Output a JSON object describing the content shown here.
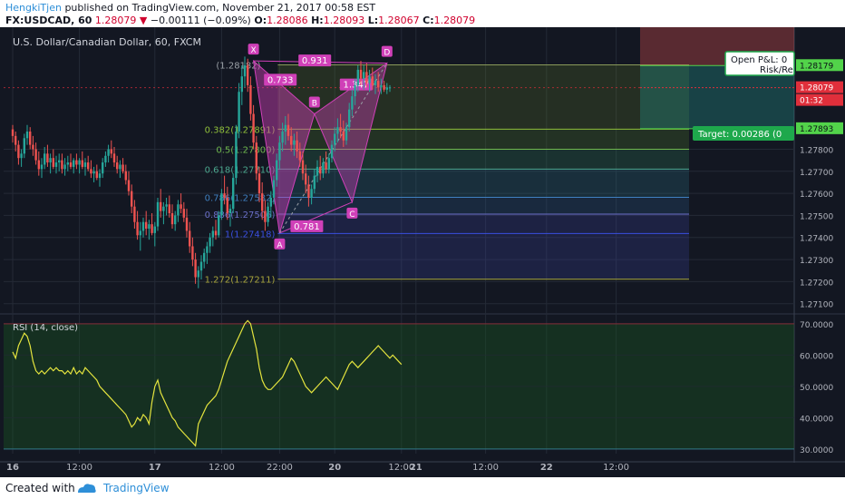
{
  "header": {
    "author": "HengkiTjen",
    "published_text": "published on TradingView.com, November 21, 2017 00:58 EST",
    "symbol": "FX:USDCAD, 60",
    "last": "1.28079",
    "change": "−0.00111 (−0.09%)",
    "o_label": "O:",
    "o_value": "1.28086",
    "h_label": "H:",
    "h_value": "1.28093",
    "l_label": "L:",
    "l_value": "1.28067",
    "c_label": "C:",
    "c_value": "1.28079"
  },
  "footer": {
    "created_with": "Created with",
    "brand": "TradingView"
  },
  "colors": {
    "background": "#131722",
    "up": "#26a69a",
    "down": "#ef5350",
    "pattern": "#d040b8",
    "rsi": "#e4e43e",
    "green_label": "#1ea84c",
    "price_tag": "#e02f3b",
    "grid": "#242a36"
  },
  "chart_data": [
    {
      "type": "candlestick",
      "title": "U.S. Dollar/Canadian Dollar, 60, FXCM",
      "y_ticks": [
        "1.27100",
        "1.27200",
        "1.27300",
        "1.27400",
        "1.27500",
        "1.27600",
        "1.27700",
        "1.27800"
      ],
      "ylim": [
        1.2707,
        1.2832
      ],
      "x_ticks": [
        "16",
        "12:00",
        "17",
        "12:00",
        "22:00",
        "20",
        "12:00",
        "21",
        "12:00",
        "22",
        "12:00"
      ],
      "x_tick_index": [
        0,
        23,
        49,
        72,
        92,
        111,
        134,
        139,
        163,
        184,
        208
      ],
      "ohlc": [
        [
          1.2789,
          1.2791,
          1.2783,
          1.2786
        ],
        [
          1.2786,
          1.2788,
          1.2779,
          1.2782
        ],
        [
          1.2782,
          1.2784,
          1.2773,
          1.2776
        ],
        [
          1.2776,
          1.278,
          1.2772,
          1.2778
        ],
        [
          1.2778,
          1.2787,
          1.2776,
          1.2785
        ],
        [
          1.2785,
          1.2791,
          1.2782,
          1.2788
        ],
        [
          1.2788,
          1.279,
          1.278,
          1.2782
        ],
        [
          1.2782,
          1.2786,
          1.2777,
          1.278
        ],
        [
          1.278,
          1.2783,
          1.2773,
          1.2775
        ],
        [
          1.2775,
          1.2779,
          1.2768,
          1.2771
        ],
        [
          1.2771,
          1.2776,
          1.2767,
          1.2773
        ],
        [
          1.2773,
          1.2781,
          1.2771,
          1.2778
        ],
        [
          1.2778,
          1.2782,
          1.2772,
          1.2774
        ],
        [
          1.2774,
          1.2778,
          1.2769,
          1.2776
        ],
        [
          1.2776,
          1.278,
          1.2771,
          1.2772
        ],
        [
          1.2772,
          1.2777,
          1.2769,
          1.2774
        ],
        [
          1.2774,
          1.2778,
          1.277,
          1.2775
        ],
        [
          1.2775,
          1.2778,
          1.2769,
          1.2771
        ],
        [
          1.2771,
          1.2776,
          1.2768,
          1.2773
        ],
        [
          1.2773,
          1.2777,
          1.277,
          1.2774
        ],
        [
          1.2774,
          1.2778,
          1.2771,
          1.2772
        ],
        [
          1.2772,
          1.2776,
          1.2769,
          1.2775
        ],
        [
          1.2775,
          1.2778,
          1.2771,
          1.2773
        ],
        [
          1.2773,
          1.2776,
          1.2769,
          1.2775
        ],
        [
          1.2775,
          1.2779,
          1.2771,
          1.2772
        ],
        [
          1.2772,
          1.2776,
          1.2768,
          1.2774
        ],
        [
          1.2774,
          1.2777,
          1.277,
          1.2771
        ],
        [
          1.2771,
          1.2775,
          1.2767,
          1.2769
        ],
        [
          1.2769,
          1.2772,
          1.2765,
          1.277
        ],
        [
          1.277,
          1.2773,
          1.2766,
          1.2767
        ],
        [
          1.2767,
          1.2771,
          1.2763,
          1.2769
        ],
        [
          1.2769,
          1.2776,
          1.2767,
          1.2774
        ],
        [
          1.2774,
          1.2779,
          1.2772,
          1.2777
        ],
        [
          1.2777,
          1.2782,
          1.2774,
          1.278
        ],
        [
          1.278,
          1.2784,
          1.2776,
          1.2778
        ],
        [
          1.2778,
          1.2781,
          1.2772,
          1.2774
        ],
        [
          1.2774,
          1.2777,
          1.2769,
          1.2771
        ],
        [
          1.2771,
          1.2775,
          1.2767,
          1.2773
        ],
        [
          1.2773,
          1.2776,
          1.2769,
          1.277
        ],
        [
          1.277,
          1.2773,
          1.2764,
          1.2766
        ],
        [
          1.2766,
          1.277,
          1.2759,
          1.2761
        ],
        [
          1.2761,
          1.2764,
          1.2751,
          1.2754
        ],
        [
          1.2754,
          1.2757,
          1.2744,
          1.2747
        ],
        [
          1.2747,
          1.2752,
          1.2739,
          1.2741
        ],
        [
          1.2741,
          1.2747,
          1.2734,
          1.2743
        ],
        [
          1.2743,
          1.2749,
          1.274,
          1.2747
        ],
        [
          1.2747,
          1.2752,
          1.2741,
          1.2744
        ],
        [
          1.2744,
          1.2748,
          1.2739,
          1.2746
        ],
        [
          1.2746,
          1.2751,
          1.2741,
          1.2742
        ],
        [
          1.2742,
          1.2747,
          1.2736,
          1.2745
        ],
        [
          1.2745,
          1.2758,
          1.2743,
          1.2756
        ],
        [
          1.2756,
          1.2762,
          1.2749,
          1.2752
        ],
        [
          1.2752,
          1.2756,
          1.2746,
          1.2754
        ],
        [
          1.2754,
          1.2758,
          1.275,
          1.2755
        ],
        [
          1.2755,
          1.2759,
          1.2749,
          1.2751
        ],
        [
          1.2751,
          1.2755,
          1.2744,
          1.2746
        ],
        [
          1.2746,
          1.2752,
          1.2743,
          1.275
        ],
        [
          1.275,
          1.2757,
          1.2747,
          1.2755
        ],
        [
          1.2755,
          1.276,
          1.2751,
          1.2753
        ],
        [
          1.2753,
          1.2756,
          1.2747,
          1.2749
        ],
        [
          1.2749,
          1.2753,
          1.274,
          1.2743
        ],
        [
          1.2743,
          1.2747,
          1.2733,
          1.2736
        ],
        [
          1.2736,
          1.274,
          1.2727,
          1.273
        ],
        [
          1.273,
          1.2733,
          1.2719,
          1.2722
        ],
        [
          1.2722,
          1.2727,
          1.2717,
          1.2725
        ],
        [
          1.2725,
          1.2732,
          1.2721,
          1.2729
        ],
        [
          1.2729,
          1.2735,
          1.2726,
          1.2733
        ],
        [
          1.2733,
          1.2738,
          1.2728,
          1.2736
        ],
        [
          1.2736,
          1.2742,
          1.2733,
          1.274
        ],
        [
          1.274,
          1.2745,
          1.2736,
          1.2743
        ],
        [
          1.2743,
          1.2748,
          1.2739,
          1.2741
        ],
        [
          1.2741,
          1.2752,
          1.274,
          1.275
        ],
        [
          1.275,
          1.2762,
          1.2748,
          1.276
        ],
        [
          1.276,
          1.2768,
          1.2755,
          1.2758
        ],
        [
          1.2758,
          1.2763,
          1.2748,
          1.2751
        ],
        [
          1.2751,
          1.2755,
          1.2745,
          1.2753
        ],
        [
          1.2753,
          1.2769,
          1.2751,
          1.2767
        ],
        [
          1.2767,
          1.2791,
          1.2764,
          1.2788
        ],
        [
          1.2788,
          1.281,
          1.2785,
          1.2806
        ],
        [
          1.2806,
          1.2818,
          1.28,
          1.2813
        ],
        [
          1.2813,
          1.2822,
          1.2808,
          1.2818
        ],
        [
          1.2818,
          1.2821,
          1.2806,
          1.2809
        ],
        [
          1.2809,
          1.2813,
          1.2793,
          1.2796
        ],
        [
          1.2796,
          1.28,
          1.278,
          1.2783
        ],
        [
          1.2783,
          1.2786,
          1.2766,
          1.2769
        ],
        [
          1.2769,
          1.2772,
          1.2756,
          1.276
        ],
        [
          1.276,
          1.2765,
          1.2748,
          1.2752
        ],
        [
          1.2752,
          1.2757,
          1.2743,
          1.2747
        ],
        [
          1.2747,
          1.2756,
          1.2745,
          1.2754
        ],
        [
          1.2754,
          1.2761,
          1.2749,
          1.2758
        ],
        [
          1.2758,
          1.2768,
          1.2755,
          1.2766
        ],
        [
          1.2766,
          1.2778,
          1.2763,
          1.2775
        ],
        [
          1.2775,
          1.2786,
          1.2771,
          1.2783
        ],
        [
          1.2783,
          1.2792,
          1.2779,
          1.2788
        ],
        [
          1.2788,
          1.2795,
          1.2782,
          1.2791
        ],
        [
          1.2791,
          1.2796,
          1.2784,
          1.2786
        ],
        [
          1.2786,
          1.279,
          1.2779,
          1.2782
        ],
        [
          1.2782,
          1.2787,
          1.2777,
          1.2784
        ],
        [
          1.2784,
          1.2788,
          1.2776,
          1.2779
        ],
        [
          1.2779,
          1.2783,
          1.2772,
          1.2775
        ],
        [
          1.2775,
          1.2779,
          1.2766,
          1.2769
        ],
        [
          1.2769,
          1.2773,
          1.276,
          1.2764
        ],
        [
          1.2764,
          1.2768,
          1.2754,
          1.2758
        ],
        [
          1.2758,
          1.2764,
          1.2755,
          1.2762
        ],
        [
          1.2762,
          1.2771,
          1.276,
          1.2768
        ],
        [
          1.2768,
          1.2775,
          1.2765,
          1.2772
        ],
        [
          1.2772,
          1.2777,
          1.2766,
          1.2769
        ],
        [
          1.2769,
          1.2776,
          1.2767,
          1.2774
        ],
        [
          1.2774,
          1.2779,
          1.2769,
          1.2771
        ],
        [
          1.2771,
          1.2778,
          1.2769,
          1.2776
        ],
        [
          1.2776,
          1.2784,
          1.2774,
          1.2782
        ],
        [
          1.2782,
          1.279,
          1.2779,
          1.2787
        ],
        [
          1.2787,
          1.2794,
          1.2783,
          1.279
        ],
        [
          1.279,
          1.2796,
          1.2785,
          1.2788
        ],
        [
          1.2788,
          1.2793,
          1.2781,
          1.2784
        ],
        [
          1.2784,
          1.2792,
          1.2782,
          1.279
        ],
        [
          1.279,
          1.2801,
          1.2788,
          1.2798
        ],
        [
          1.2798,
          1.2807,
          1.2795,
          1.2804
        ],
        [
          1.2804,
          1.2812,
          1.28,
          1.2809
        ],
        [
          1.2809,
          1.2818,
          1.2806,
          1.2816
        ],
        [
          1.2816,
          1.282,
          1.2809,
          1.2812
        ],
        [
          1.2812,
          1.2818,
          1.2807,
          1.2815
        ],
        [
          1.2815,
          1.2819,
          1.2808,
          1.281
        ],
        [
          1.281,
          1.2816,
          1.2806,
          1.2813
        ],
        [
          1.2813,
          1.2817,
          1.2807,
          1.2809
        ],
        [
          1.2809,
          1.2814,
          1.2805,
          1.2811
        ],
        [
          1.2811,
          1.2815,
          1.2806,
          1.2808
        ],
        [
          1.2808,
          1.2812,
          1.2805,
          1.2809
        ],
        [
          1.2809,
          1.2811,
          1.2806,
          1.2807
        ],
        [
          1.2807,
          1.281,
          1.2805,
          1.2808
        ],
        [
          1.2808,
          1.2809,
          1.2806,
          1.2808
        ]
      ],
      "price_tags": [
        {
          "text": "1.28179"
        },
        {
          "text": "1.28079"
        },
        {
          "text": "01:32"
        },
        {
          "text": "1.27893"
        }
      ],
      "harmonic_pattern": {
        "points": [
          {
            "label": "X",
            "x_index": 83,
            "y": 1.282
          },
          {
            "label": "A",
            "x_index": 92,
            "y": 1.2742
          },
          {
            "label": "B",
            "x_index": 104,
            "y": 1.2796
          },
          {
            "label": "C",
            "x_index": 117,
            "y": 1.2756
          },
          {
            "label": "D",
            "x_index": 129,
            "y": 1.2819
          }
        ],
        "ratios": [
          "0.931",
          "0.733",
          "1.347",
          "0.781"
        ]
      },
      "fib_levels": [
        {
          "label": "0.382(1.27891)",
          "value": 1.27891,
          "color": "#8fbf3a"
        },
        {
          "label": "0.5(1.27800)",
          "value": 1.278,
          "color": "#6fb84e"
        },
        {
          "label": "0.618(1.27710)",
          "value": 1.2771,
          "color": "#4aa58c"
        },
        {
          "label": "0.786(1.27582)",
          "value": 1.27582,
          "color": "#3f7fbf"
        },
        {
          "label": "0.886(1.27506)",
          "value": 1.27506,
          "color": "#6a6fc8"
        },
        {
          "label": "1(1.27418)",
          "value": 1.27418,
          "color": "#3a4fe0"
        },
        {
          "label": "1.272(1.27211)",
          "value": 1.27211,
          "color": "#a6a33a"
        }
      ],
      "fib_top_label": "(1.28182)",
      "trade_boxes": {
        "open_pl_label": "Open P&L: 0",
        "risk_label": "Risk/Re",
        "target_label": "Target: 0.00286 (0"
      }
    },
    {
      "type": "line",
      "title": "RSI (14, close)",
      "y_ticks": [
        "30.0000",
        "40.0000",
        "50.0000",
        "60.0000",
        "70.0000"
      ],
      "ylim": [
        28.5,
        72
      ],
      "bands": [
        30,
        70
      ],
      "values": [
        61,
        59,
        63,
        65,
        67,
        66,
        63,
        58,
        55,
        54,
        55,
        54,
        55,
        56,
        55,
        56,
        55,
        55,
        54,
        55,
        54,
        56,
        54,
        55,
        54,
        56,
        55,
        54,
        53,
        52,
        50,
        49,
        48,
        47,
        46,
        45,
        44,
        43,
        42,
        41,
        39,
        37,
        38,
        40,
        39,
        41,
        40,
        38,
        45,
        50,
        52,
        48,
        46,
        44,
        42,
        40,
        39,
        37,
        36,
        35,
        34,
        33,
        32,
        31,
        38,
        40,
        42,
        44,
        45,
        46,
        47,
        49,
        52,
        55,
        58,
        60,
        62,
        64,
        66,
        68,
        70,
        71,
        70,
        66,
        62,
        56,
        52,
        50,
        49,
        49,
        50,
        51,
        52,
        53,
        55,
        57,
        59,
        58,
        56,
        54,
        52,
        50,
        49,
        48,
        49,
        50,
        51,
        52,
        53,
        52,
        51,
        50,
        49,
        51,
        53,
        55,
        57,
        58,
        57,
        56,
        57,
        58,
        59,
        60,
        61,
        62,
        63,
        62,
        61,
        60,
        59,
        60,
        59,
        58,
        57
      ]
    }
  ]
}
